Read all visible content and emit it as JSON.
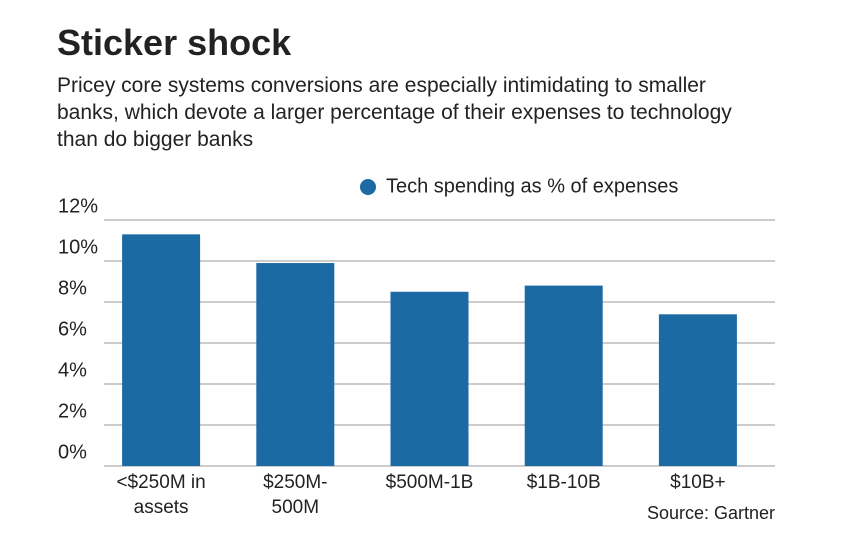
{
  "chart_data": {
    "type": "bar",
    "title": "Sticker shock",
    "subtitle": "Pricey core systems conversions are especially intimidating to smaller banks, which devote a larger percentage of their expenses to technology than do bigger banks",
    "categories": [
      "<$250M in assets",
      "$250M-500M",
      "$500M-1B",
      "$1B-10B",
      "$10B+"
    ],
    "series": [
      {
        "name": "Tech spending as % of expenses",
        "color": "#1c6aa4",
        "values": [
          11.3,
          9.9,
          8.5,
          8.8,
          7.4
        ]
      }
    ],
    "ylim": [
      0,
      12
    ],
    "yticks": [
      {
        "value": 0,
        "label": "0%"
      },
      {
        "value": 2,
        "label": "2%"
      },
      {
        "value": 4,
        "label": "4%"
      },
      {
        "value": 6,
        "label": "6%"
      },
      {
        "value": 8,
        "label": "8%"
      },
      {
        "value": 10,
        "label": "10%"
      },
      {
        "value": 12,
        "label": "12%"
      }
    ],
    "grid": true,
    "legend": "top-right",
    "source": "Source: Gartner"
  }
}
